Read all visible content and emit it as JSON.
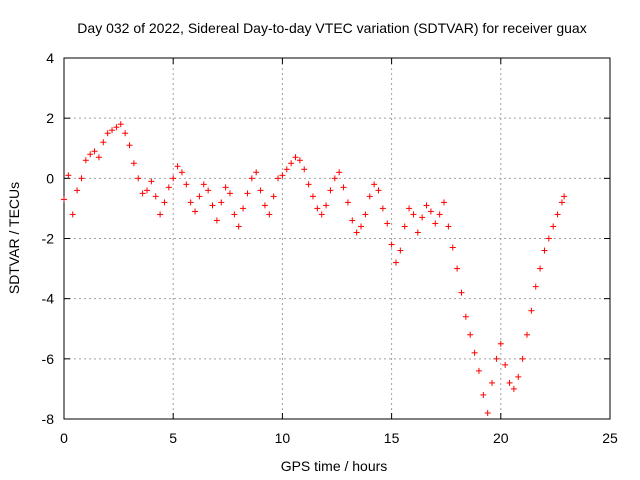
{
  "chart_data": {
    "type": "scatter",
    "title": "Day 032 of 2022, Sidereal Day-to-day VTEC variation (SDTVAR) for receiver guax",
    "xlabel": "GPS time / hours",
    "ylabel": "SDTVAR / TECUs",
    "xlim": [
      0,
      25
    ],
    "ylim": [
      -8,
      4
    ],
    "xticks": [
      0,
      5,
      10,
      15,
      20,
      25
    ],
    "yticks": [
      -8,
      -6,
      -4,
      -2,
      0,
      2,
      4
    ],
    "xtick_labels": [
      "0",
      "5",
      "10",
      "15",
      "20",
      "25"
    ],
    "ytick_labels": [
      "-8",
      "-6",
      "-4",
      "-2",
      "0",
      "2",
      "4"
    ],
    "grid": true,
    "marker": "+",
    "color": "#ff0000",
    "series": [
      {
        "name": "SDTVAR",
        "x": [
          0.0,
          0.2,
          0.4,
          0.6,
          0.8,
          1.0,
          1.2,
          1.4,
          1.6,
          1.8,
          2.0,
          2.2,
          2.4,
          2.6,
          2.8,
          3.0,
          3.2,
          3.4,
          3.6,
          3.8,
          4.0,
          4.2,
          4.4,
          4.6,
          4.8,
          5.0,
          5.2,
          5.4,
          5.6,
          5.8,
          6.0,
          6.2,
          6.4,
          6.6,
          6.8,
          7.0,
          7.2,
          7.4,
          7.6,
          7.8,
          8.0,
          8.2,
          8.4,
          8.6,
          8.8,
          9.0,
          9.2,
          9.4,
          9.6,
          9.8,
          10.0,
          10.2,
          10.4,
          10.6,
          10.8,
          11.0,
          11.2,
          11.4,
          11.6,
          11.8,
          12.0,
          12.2,
          12.4,
          12.6,
          12.8,
          13.0,
          13.2,
          13.4,
          13.6,
          13.8,
          14.0,
          14.2,
          14.4,
          14.6,
          14.8,
          15.0,
          15.2,
          15.4,
          15.6,
          15.8,
          16.0,
          16.2,
          16.4,
          16.6,
          16.8,
          17.0,
          17.2,
          17.4,
          17.6,
          17.8,
          18.0,
          18.2,
          18.4,
          18.6,
          18.8,
          19.0,
          19.2,
          19.4,
          19.6,
          19.8,
          20.0,
          20.2,
          20.4,
          20.6,
          20.8,
          21.0,
          21.2,
          21.4,
          21.6,
          21.8,
          22.0,
          22.2,
          22.4,
          22.6,
          22.8,
          22.9
        ],
        "y": [
          -0.7,
          0.1,
          -1.2,
          -0.4,
          0.0,
          0.6,
          0.8,
          0.9,
          0.7,
          1.2,
          1.5,
          1.6,
          1.7,
          1.8,
          1.5,
          1.1,
          0.5,
          0.0,
          -0.5,
          -0.4,
          -0.1,
          -0.6,
          -1.2,
          -0.8,
          -0.3,
          0.0,
          0.4,
          0.2,
          -0.2,
          -0.8,
          -1.1,
          -0.6,
          -0.2,
          -0.4,
          -0.9,
          -1.4,
          -0.8,
          -0.3,
          -0.5,
          -1.2,
          -1.6,
          -1.0,
          -0.5,
          0.0,
          0.2,
          -0.4,
          -0.9,
          -1.2,
          -0.6,
          0.0,
          0.1,
          0.3,
          0.5,
          0.7,
          0.6,
          0.3,
          -0.2,
          -0.6,
          -1.0,
          -1.2,
          -0.9,
          -0.4,
          0.0,
          0.2,
          -0.3,
          -0.8,
          -1.4,
          -1.8,
          -1.6,
          -1.2,
          -0.6,
          -0.2,
          -0.4,
          -1.0,
          -1.5,
          -2.2,
          -2.8,
          -2.4,
          -1.6,
          -1.0,
          -1.2,
          -1.8,
          -1.3,
          -0.9,
          -1.1,
          -1.5,
          -1.2,
          -0.8,
          -1.6,
          -2.3,
          -3.0,
          -3.8,
          -4.6,
          -5.2,
          -5.8,
          -6.4,
          -7.2,
          -7.8,
          -6.8,
          -6.0,
          -5.5,
          -6.2,
          -6.8,
          -7.0,
          -6.6,
          -6.0,
          -5.2,
          -4.4,
          -3.6,
          -3.0,
          -2.4,
          -2.0,
          -1.6,
          -1.2,
          -0.8,
          -0.6
        ]
      }
    ]
  }
}
